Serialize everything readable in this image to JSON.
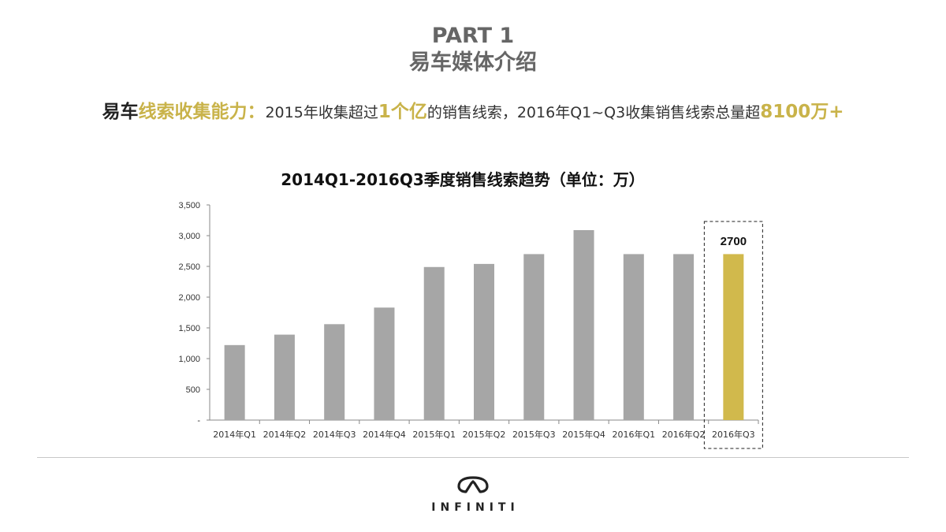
{
  "header": {
    "part": "PART 1",
    "subtitle": "易车媒体介绍"
  },
  "headline": {
    "lead_dark": "易车",
    "lead_gold": "线索收集能力：",
    "text1": "2015年收集超过",
    "highlight1": "1个亿",
    "text2": "的销售线索，2016年Q1~Q3收集销售线索总量超",
    "highlight2": "8100万+"
  },
  "chart_data": {
    "type": "bar",
    "title": "2014Q1-2016Q3季度销售线索趋势（单位：万）",
    "categories": [
      "2014年Q1",
      "2014年Q2",
      "2014年Q3",
      "2014年Q4",
      "2015年Q1",
      "2015年Q2",
      "2015年Q3",
      "2015年Q4",
      "2016年Q1",
      "2016年Q2",
      "2016年Q3"
    ],
    "values": [
      1220,
      1390,
      1560,
      1830,
      2490,
      2540,
      2700,
      3090,
      2700,
      2700,
      2700
    ],
    "highlight_index": 10,
    "highlight_label": "2700",
    "ylim": [
      0,
      3500
    ],
    "yticks": [
      0,
      500,
      1000,
      1500,
      2000,
      2500,
      3000,
      3500
    ],
    "ytick_labels": [
      "-",
      "500",
      "1,000",
      "1,500",
      "2,000",
      "2,500",
      "3,000",
      "3,500"
    ],
    "xlabel": "",
    "ylabel": "",
    "bar_color": "#a6a6a6",
    "highlight_color": "#d1b94c"
  },
  "brand": {
    "name": "INFINITI"
  }
}
